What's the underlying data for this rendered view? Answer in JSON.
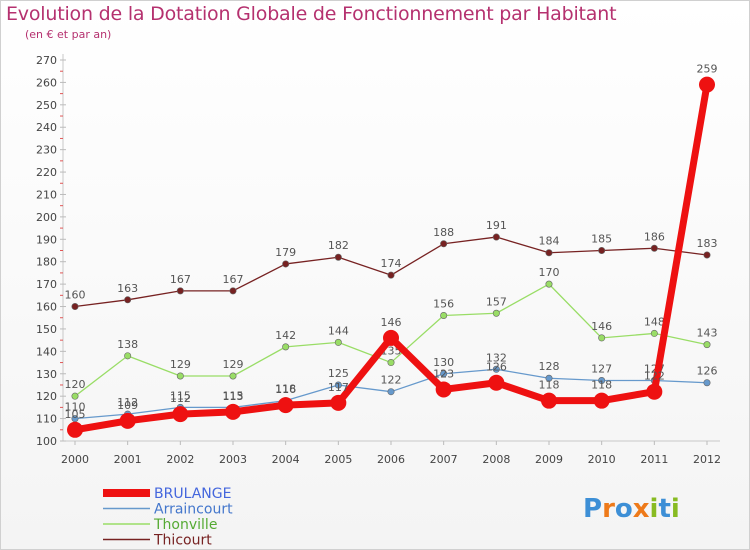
{
  "chart_data": {
    "type": "line",
    "title": "Evolution de la Dotation Globale de Fonctionnement par Habitant",
    "subtitle": "(en € et par an)",
    "xlabel": "",
    "ylabel": "",
    "x": [
      "2000",
      "2001",
      "2002",
      "2003",
      "2004",
      "2005",
      "2006",
      "2007",
      "2008",
      "2009",
      "2010",
      "2011",
      "2012"
    ],
    "ylim": [
      100,
      270
    ],
    "yticks": [
      100,
      110,
      120,
      130,
      140,
      150,
      160,
      170,
      180,
      190,
      200,
      210,
      220,
      230,
      240,
      250,
      260,
      270
    ],
    "grid": false,
    "legend_position": "bottom-left",
    "series": [
      {
        "name": "BRULANGE",
        "color": "#ee1111",
        "text_color": "#4466dd",
        "width": 7,
        "marker": 8,
        "values": [
          105,
          109,
          112,
          113,
          116,
          117,
          146,
          123,
          126,
          118,
          118,
          122,
          259
        ],
        "labels": [
          "105",
          "109",
          "112",
          "113",
          "116",
          "117",
          "146",
          "123",
          "126",
          "118",
          "118",
          "122",
          "259"
        ]
      },
      {
        "name": "Arraincourt",
        "color": "#6699cc",
        "text_color": "#4477cc",
        "width": 1.3,
        "marker": 3.2,
        "values": [
          110,
          112,
          115,
          115,
          118,
          125,
          122,
          130,
          132,
          128,
          127,
          127,
          126
        ],
        "labels": [
          "110",
          "112",
          "115",
          "115",
          "118",
          "125",
          "122",
          "130",
          "132",
          "128",
          "127",
          "127",
          "126"
        ]
      },
      {
        "name": "Thonville",
        "color": "#99dd66",
        "text_color": "#55aa33",
        "width": 1.3,
        "marker": 3.2,
        "values": [
          120,
          138,
          129,
          129,
          142,
          144,
          135,
          156,
          157,
          170,
          146,
          148,
          143
        ],
        "labels": [
          "120",
          "138",
          "129",
          "129",
          "142",
          "144",
          "135",
          "156",
          "157",
          "170",
          "146",
          "148",
          "143"
        ]
      },
      {
        "name": "Thicourt",
        "color": "#772222",
        "text_color": "#772222",
        "width": 1.3,
        "marker": 3.2,
        "values": [
          160,
          163,
          167,
          167,
          179,
          182,
          174,
          188,
          191,
          184,
          185,
          186,
          183
        ],
        "labels": [
          "160",
          "163",
          "167",
          "167",
          "179",
          "182",
          "174",
          "188",
          "191",
          "184",
          "185",
          "186",
          "183"
        ]
      }
    ]
  },
  "logo": {
    "text": "Proxiti",
    "letters": [
      "P",
      "r",
      "o",
      "x",
      "i",
      "t",
      "i"
    ],
    "colors": [
      "#3d8fd6",
      "#ee7a1a",
      "#3d8fd6",
      "#ee7a1a",
      "#88bb22",
      "#3d8fd6",
      "#88bb22"
    ]
  }
}
